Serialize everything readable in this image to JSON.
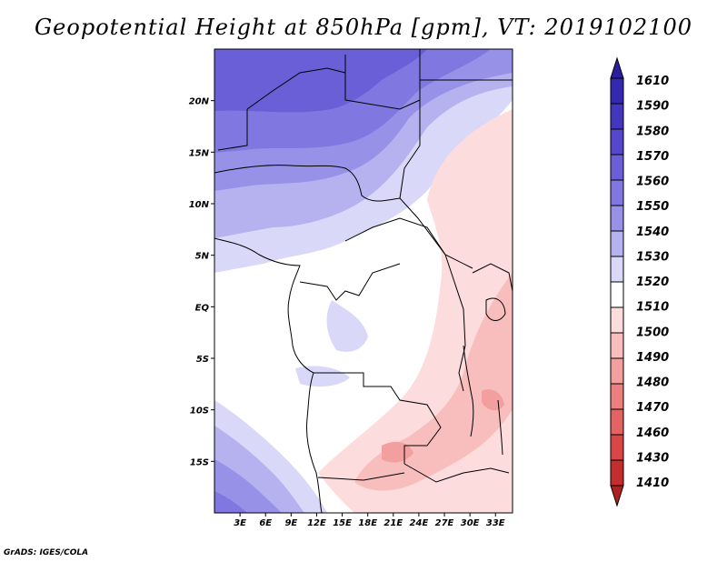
{
  "title": "Geopotential Height at 850hPa [gpm], VT: 2019102100",
  "credit": "GrADS: IGES/COLA",
  "map": {
    "lat_range": [
      -20,
      25
    ],
    "lon_range": [
      0,
      35
    ],
    "lat_ticks": [
      {
        "value": 20,
        "label": "20N"
      },
      {
        "value": 15,
        "label": "15N"
      },
      {
        "value": 10,
        "label": "10N"
      },
      {
        "value": 5,
        "label": "5N"
      },
      {
        "value": 0,
        "label": "EQ"
      },
      {
        "value": -5,
        "label": "5S"
      },
      {
        "value": -10,
        "label": "10S"
      },
      {
        "value": -15,
        "label": "15S"
      }
    ],
    "lon_ticks": [
      {
        "value": 3,
        "label": "3E"
      },
      {
        "value": 6,
        "label": "6E"
      },
      {
        "value": 9,
        "label": "9E"
      },
      {
        "value": 12,
        "label": "12E"
      },
      {
        "value": 15,
        "label": "15E"
      },
      {
        "value": 18,
        "label": "18E"
      },
      {
        "value": 21,
        "label": "21E"
      },
      {
        "value": 24,
        "label": "24E"
      },
      {
        "value": 27,
        "label": "27E"
      },
      {
        "value": 30,
        "label": "30E"
      },
      {
        "value": 33,
        "label": "33E"
      }
    ]
  },
  "colorbar": {
    "levels": [
      {
        "label": "1610",
        "color": "#2a1e9e"
      },
      {
        "label": "1590",
        "color": "#3427b0"
      },
      {
        "label": "1580",
        "color": "#4337c0"
      },
      {
        "label": "1570",
        "color": "#5548cc"
      },
      {
        "label": "1560",
        "color": "#6a5fd6"
      },
      {
        "label": "1550",
        "color": "#8078e0"
      },
      {
        "label": "1540",
        "color": "#9891e8"
      },
      {
        "label": "1530",
        "color": "#b6b2f0"
      },
      {
        "label": "1520",
        "color": "#d9d8f8"
      },
      {
        "label": "1510",
        "color": "#ffffff"
      },
      {
        "label": "1500",
        "color": "#fcdcdc"
      },
      {
        "label": "1490",
        "color": "#f8bdbd"
      },
      {
        "label": "1480",
        "color": "#f39f9f"
      },
      {
        "label": "1470",
        "color": "#ec8080"
      },
      {
        "label": "1460",
        "color": "#e46262"
      },
      {
        "label": "1430",
        "color": "#d84646"
      },
      {
        "label": "1410",
        "color": "#c42e2e"
      }
    ],
    "bottom_color": "#b02020"
  }
}
